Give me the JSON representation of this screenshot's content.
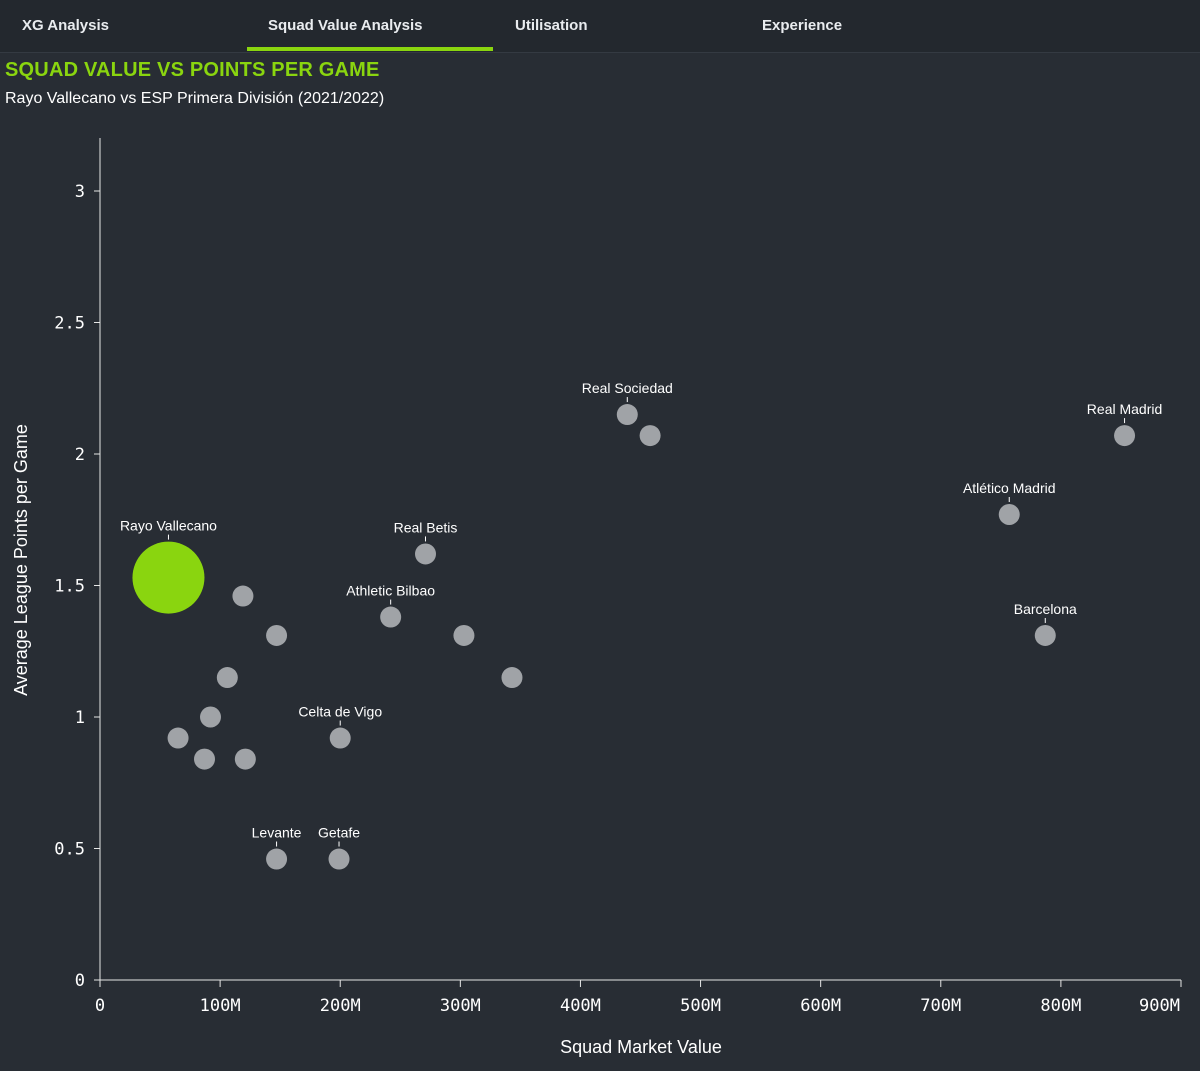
{
  "tabs": [
    {
      "label": "XG Analysis",
      "active": false
    },
    {
      "label": "Squad Value Analysis",
      "active": true
    },
    {
      "label": "Utilisation",
      "active": false
    },
    {
      "label": "Experience",
      "active": false
    }
  ],
  "header": {
    "title": "SQUAD VALUE VS POINTS PER GAME",
    "subtitle": "Rayo Vallecano vs ESP Primera División (2021/2022)"
  },
  "colors": {
    "accent": "#8ad50f",
    "point": "#a0a3a7",
    "background": "#282d34",
    "tabbar": "#23282e"
  },
  "chart_data": {
    "type": "scatter",
    "xlabel": "Squad Market Value",
    "ylabel": "Average League Points per Game",
    "xlim": [
      0,
      900
    ],
    "ylim": [
      0,
      3.2
    ],
    "x_unit": "M",
    "xticks": [
      0,
      100,
      200,
      300,
      400,
      500,
      600,
      700,
      800,
      900
    ],
    "xtick_labels": [
      "0",
      "100M",
      "200M",
      "300M",
      "400M",
      "500M",
      "600M",
      "700M",
      "800M",
      "900M"
    ],
    "yticks": [
      0,
      0.5,
      1,
      1.5,
      2,
      2.5,
      3
    ],
    "ytick_labels": [
      "0",
      "0.5",
      "1",
      "1.5",
      "2",
      "2.5",
      "3"
    ],
    "grid": false,
    "points": [
      {
        "label": "Rayo Vallecano",
        "x": 57,
        "y": 1.53,
        "highlight": true
      },
      {
        "label": "",
        "x": 119,
        "y": 1.46
      },
      {
        "label": "",
        "x": 147,
        "y": 1.31
      },
      {
        "label": "",
        "x": 106,
        "y": 1.15
      },
      {
        "label": "",
        "x": 92,
        "y": 1.0
      },
      {
        "label": "",
        "x": 65,
        "y": 0.92
      },
      {
        "label": "",
        "x": 87,
        "y": 0.84
      },
      {
        "label": "",
        "x": 121,
        "y": 0.84
      },
      {
        "label": "Levante",
        "x": 147,
        "y": 0.46
      },
      {
        "label": "Getafe",
        "x": 199,
        "y": 0.46
      },
      {
        "label": "Celta de Vigo",
        "x": 200,
        "y": 0.92
      },
      {
        "label": "Athletic Bilbao",
        "x": 242,
        "y": 1.38
      },
      {
        "label": "Real Betis",
        "x": 271,
        "y": 1.62
      },
      {
        "label": "",
        "x": 303,
        "y": 1.31
      },
      {
        "label": "",
        "x": 343,
        "y": 1.15
      },
      {
        "label": "Real Sociedad",
        "x": 439,
        "y": 2.15
      },
      {
        "label": "",
        "x": 458,
        "y": 2.07
      },
      {
        "label": "Atlético Madrid",
        "x": 757,
        "y": 1.77
      },
      {
        "label": "Barcelona",
        "x": 787,
        "y": 1.31
      },
      {
        "label": "Real Madrid",
        "x": 853,
        "y": 2.07
      }
    ]
  }
}
